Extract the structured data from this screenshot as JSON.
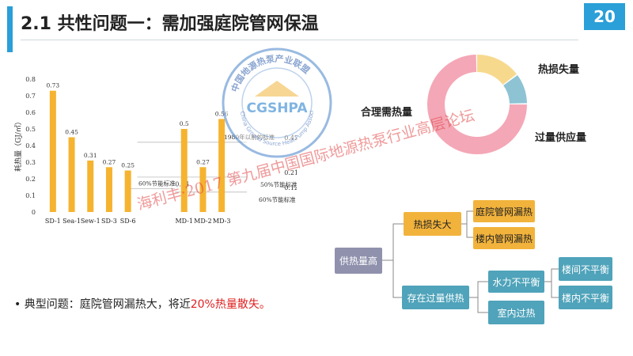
{
  "header": {
    "title": "2.1 共性问题一：需加强庭院管网保温",
    "page_number": "20",
    "accent_color": "#2a9fd8"
  },
  "chart_data": {
    "type": "bar",
    "ylabel": "耗热量（GJ/㎡）",
    "ylim": [
      0,
      0.8
    ],
    "yticks": [
      "0",
      "0.1",
      "0.2",
      "0.3",
      "0.4",
      "0.5",
      "0.6",
      "0.7",
      "0.8"
    ],
    "categories": [
      "SD-1",
      "Sea-1",
      "Sew-1",
      "SD-3",
      "SD-6",
      "",
      "",
      "MD-1",
      "MD-2",
      "MD-3"
    ],
    "values": [
      0.73,
      0.45,
      0.31,
      0.27,
      0.25,
      null,
      null,
      0.5,
      0.27,
      0.56
    ],
    "value_labels": [
      "0.73",
      "0.45",
      "0.31",
      "0.27",
      "0.25",
      "",
      "",
      "0.5",
      "0.27",
      "0.56"
    ],
    "bar_color": "#f5b330",
    "reference_lines": [
      {
        "label": "1980年以前的标准",
        "value": 0.42,
        "value_label": "0.42"
      },
      {
        "label": "50%节能标准",
        "value": 0.21,
        "value_label": "0.21"
      },
      {
        "label": "60%节能标准",
        "value": 0.14,
        "value_label": "0.14"
      },
      {
        "label": "60%节能标准",
        "value": 0.12,
        "value_label": "0.12"
      }
    ]
  },
  "donut": {
    "segments": [
      {
        "name": "合理需热量",
        "value": 0.75,
        "color": "#f4a7b6"
      },
      {
        "name": "热损失量",
        "value": 0.15,
        "color": "#f7d98e"
      },
      {
        "name": "过量供应量",
        "value": 0.1,
        "color": "#8ec3d3"
      }
    ]
  },
  "tree": {
    "root": "供热量高",
    "heat_loss": "热损失大",
    "heat_loss_children": [
      "庭院管网漏热",
      "楼内管网漏热"
    ],
    "oversupply": "存在过量供热",
    "hydraulic": "水力不平衡",
    "hydraulic_children": [
      "楼间不平衡",
      "楼内不平衡"
    ],
    "overheat": "室内过热"
  },
  "bullet": {
    "marker": "•",
    "prefix": "典型问题：庭院管网漏热大，将近",
    "highlight": "20%热量散失。"
  },
  "watermark": {
    "text": "海利丰·2017 第九届中国国际地源热泵行业高层论坛"
  },
  "logo": {
    "text": "CGSHPA",
    "ring_text": "中国地源热泵产业联盟",
    "english_text": "China Ground Source Heat Pump Association"
  }
}
